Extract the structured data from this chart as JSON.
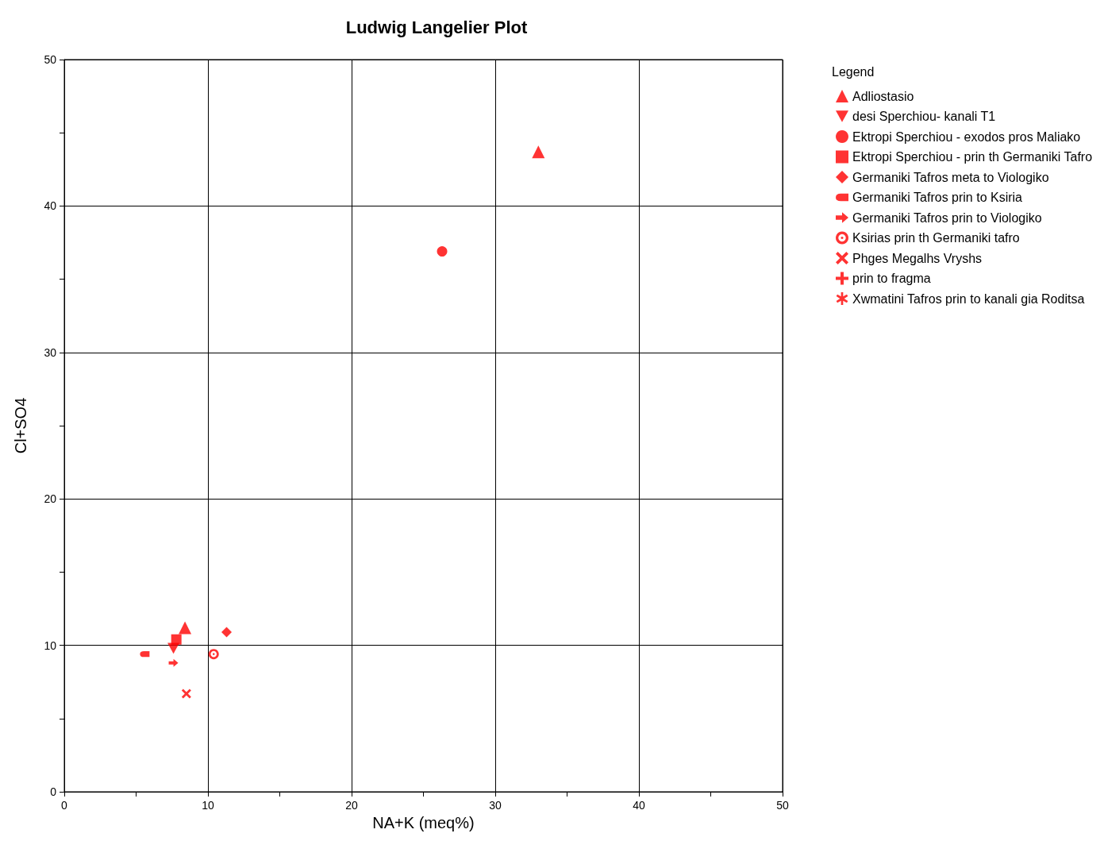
{
  "chart_data": {
    "type": "scatter",
    "title": "Ludwig Langelier Plot",
    "xlabel": "NA+K (meq%)",
    "ylabel": "Cl+SO4",
    "legend_title": "Legend",
    "legend": "right",
    "grid": true,
    "xlim": [
      0,
      50
    ],
    "ylim": [
      0,
      50
    ],
    "xticks": [
      0,
      {
        "value": 5,
        "label": null
      },
      10,
      {
        "value": 15,
        "label": null
      },
      20,
      {
        "value": 25,
        "label": null
      },
      30,
      {
        "value": 35,
        "label": null
      },
      40,
      {
        "value": 45,
        "label": null
      },
      50
    ],
    "yticks": [
      0,
      {
        "value": 5,
        "label": null
      },
      10,
      {
        "value": 15,
        "label": null
      },
      20,
      {
        "value": 25,
        "label": null
      },
      30,
      {
        "value": 35,
        "label": null
      },
      40,
      {
        "value": 45,
        "label": null
      },
      50
    ],
    "series": [
      {
        "name": "Adliostasio",
        "color": "#ff0000",
        "marker": "triangle",
        "x": [
          8.4,
          33
        ],
        "values": [
          11.2,
          43.7
        ]
      },
      {
        "name": "desi Sperchiou- kanali T1",
        "color": "#ff0000",
        "marker": "triangle-down",
        "x": [
          7.6
        ],
        "values": [
          9.8
        ]
      },
      {
        "name": "Ektropi Sperchiou - exodos pros Maliako",
        "color": "#ff0000",
        "marker": "circle",
        "x": [
          26.3
        ],
        "values": [
          36.9
        ]
      },
      {
        "name": "Ektropi Sperchiou - prin th Germaniki Tafro",
        "color": "#ff0000",
        "marker": "square",
        "x": [
          7.8
        ],
        "values": [
          10.4
        ]
      },
      {
        "name": "Germaniki Tafros meta to Viologiko",
        "color": "#ff0000",
        "marker": "diamond",
        "x": [
          11.3
        ],
        "values": [
          10.9
        ]
      },
      {
        "name": "Germaniki Tafros prin to Ksiria",
        "color": "#ff0000",
        "x": [
          5.6
        ],
        "values": [
          9.4
        ]
      },
      {
        "name": "Germaniki Tafros prin to Viologiko",
        "color": "#ff0000",
        "x": [
          7.6
        ],
        "values": [
          8.8
        ]
      },
      {
        "name": "Ksirias prin th Germaniki tafro",
        "color": "#ff0000",
        "x": [
          10.4
        ],
        "values": [
          9.4
        ]
      },
      {
        "name": "Phges Megalhs Vryshs",
        "color": "#ff0000",
        "marker": "cross",
        "x": [
          8.5
        ],
        "values": [
          6.7
        ]
      },
      {
        "name": "prin to fragma",
        "color": "#ff0000",
        "marker": "plus",
        "x": [
          null
        ],
        "values": [
          null
        ]
      },
      {
        "name": "Xwmatini Tafros prin to kanali gia Roditsa",
        "color": "#ff0000",
        "marker": "asterisk",
        "x": [
          null
        ],
        "values": [
          null
        ]
      }
    ]
  }
}
